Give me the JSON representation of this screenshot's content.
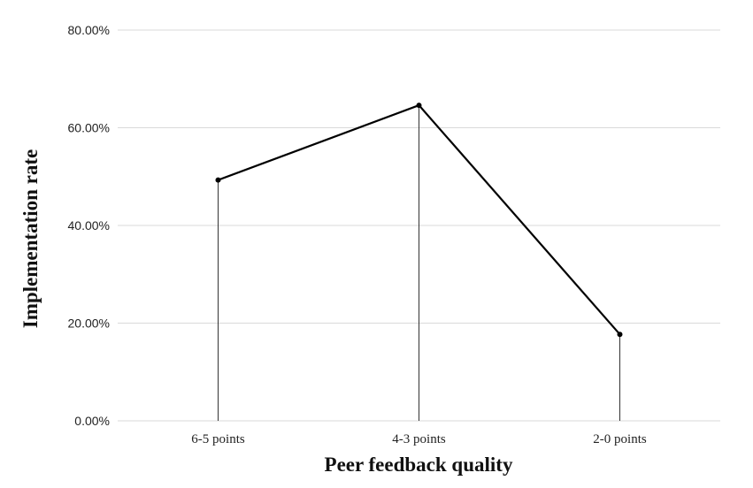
{
  "chart_data": {
    "type": "line",
    "categories": [
      "6-5 points",
      "4-3 points",
      "2-0 points"
    ],
    "series": [
      {
        "values": [
          49.3,
          64.6,
          17.7
        ]
      }
    ],
    "ylim": [
      0,
      80
    ],
    "yticks": [
      "0.00%",
      "20.00%",
      "40.00%",
      "60.00%",
      "80.00%"
    ],
    "xlabel": "Peer feedback quality",
    "ylabel": "Implementation rate",
    "grid": true,
    "drop_lines": true,
    "colors": {
      "line": "#000000",
      "grid": "#d9d9d9",
      "drop": "#333333"
    }
  }
}
